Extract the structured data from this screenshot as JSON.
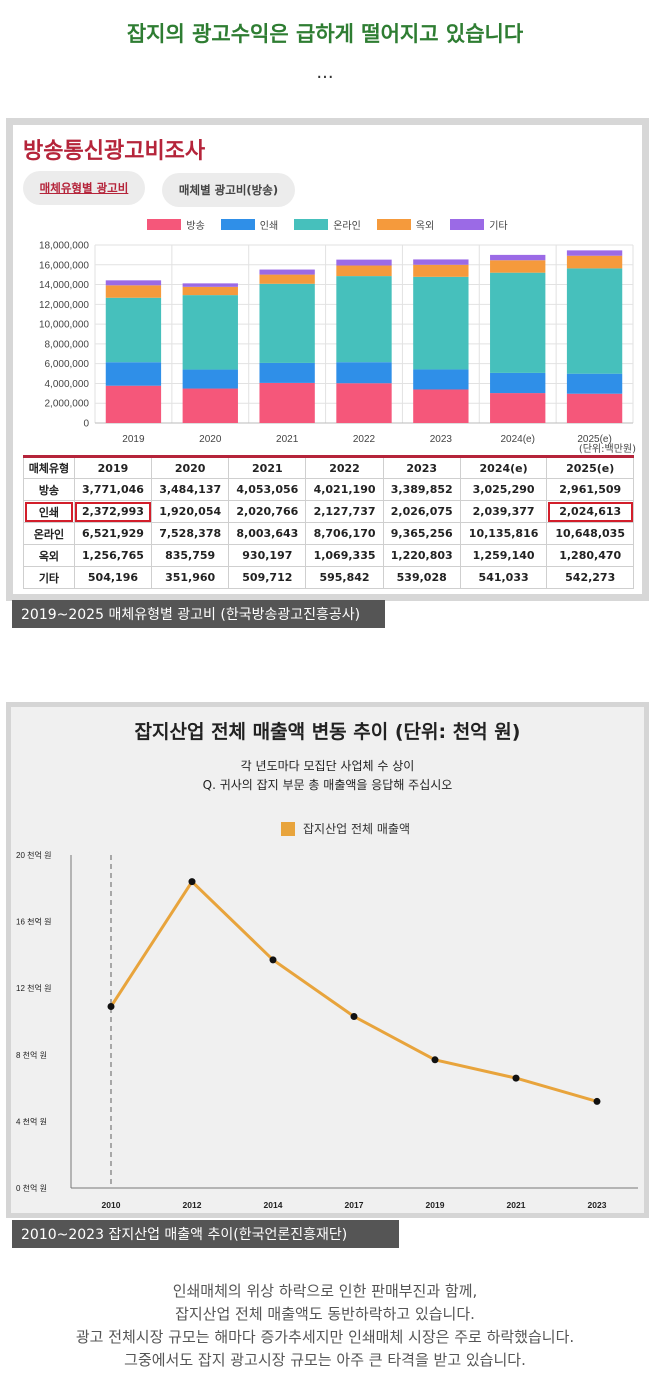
{
  "header": {
    "headline": "잡지의 광고수익은 급하게 떨어지고 있습니다",
    "ellipsis": "..."
  },
  "figure1": {
    "title": "방송통신광고비조사",
    "tabs": [
      {
        "label": "매체유형별 광고비",
        "active": true
      },
      {
        "label": "매체별 광고비(방송)",
        "active": false
      }
    ],
    "unit": "(단위:백만원)",
    "caption": "2019~2025 매체유형별 광고비 (한국방송광고진흥공사)",
    "table": {
      "header": [
        "매체유형",
        "2019",
        "2020",
        "2021",
        "2022",
        "2023",
        "2024(e)",
        "2025(e)"
      ],
      "rows": [
        [
          "방송",
          "3,771,046",
          "3,484,137",
          "4,053,056",
          "4,021,190",
          "3,389,852",
          "3,025,290",
          "2,961,509"
        ],
        [
          "인쇄",
          "2,372,993",
          "1,920,054",
          "2,020,766",
          "2,127,737",
          "2,026,075",
          "2,039,377",
          "2,024,613"
        ],
        [
          "온라인",
          "6,521,929",
          "7,528,378",
          "8,003,643",
          "8,706,170",
          "9,365,256",
          "10,135,816",
          "10,648,035"
        ],
        [
          "옥외",
          "1,256,765",
          "835,759",
          "930,197",
          "1,069,335",
          "1,220,803",
          "1,259,140",
          "1,280,470"
        ],
        [
          "기타",
          "504,196",
          "351,960",
          "509,712",
          "595,842",
          "539,028",
          "541,033",
          "542,273"
        ]
      ]
    }
  },
  "figure2": {
    "title": "잡지산업 전체 매출액 변동 추이 (단위: 천억 원)",
    "subtitle1": "각 년도마다 모집단 사업체 수 상이",
    "subtitle2": "Q. 귀사의 잡지 부문 총 매출액을 응답해 주십시오",
    "legend": "잡지산업 전체 매출액",
    "caption": "2010~2023 잡지산업 매출액 추이(한국언론진흥재단)"
  },
  "body_text": [
    "인쇄매체의 위상 하락으로 인한 판매부진과 함께,",
    "잡지산업 전체 매출액도 동반하락하고 있습니다.",
    "광고 전체시장 규모는 해마다 증가추세지만 인쇄매체 시장은 주로 하락했습니다.",
    "그중에서도 잡지 광고시장 규모는 아주 큰 타격을 받고 있습니다."
  ],
  "chart_data": [
    {
      "type": "bar",
      "stacked": true,
      "title": "방송통신광고비조사",
      "categories": [
        "2019",
        "2020",
        "2021",
        "2022",
        "2023",
        "2024(e)",
        "2025(e)"
      ],
      "series": [
        {
          "name": "방송",
          "color": "#f5577a",
          "values": [
            3771046,
            3484137,
            4053056,
            4021190,
            3389852,
            3025290,
            2961509
          ]
        },
        {
          "name": "인쇄",
          "color": "#2f8fe8",
          "values": [
            2372993,
            1920054,
            2020766,
            2127737,
            2026075,
            2039377,
            2024613
          ]
        },
        {
          "name": "온라인",
          "color": "#46c0bc",
          "values": [
            6521929,
            7528378,
            8003643,
            8706170,
            9365256,
            10135816,
            10648035
          ]
        },
        {
          "name": "옥외",
          "color": "#f59a3c",
          "values": [
            1256765,
            835759,
            930197,
            1069335,
            1220803,
            1259140,
            1280470
          ]
        },
        {
          "name": "기타",
          "color": "#9b6ae6",
          "values": [
            504196,
            351960,
            509712,
            595842,
            539028,
            541033,
            542273
          ]
        }
      ],
      "ylim": [
        0,
        18000000
      ],
      "yticks": [
        "18,000,000",
        "16,000,000",
        "14,000,000",
        "12,000,000",
        "10,000,000",
        "8,000,000",
        "6,000,000",
        "4,000,000",
        "2,000,000",
        "0"
      ],
      "legend_position": "top-center"
    },
    {
      "type": "line",
      "title": "잡지산업 전체 매출액 변동 추이 (단위: 천억 원)",
      "x": [
        "2010",
        "2012",
        "2014",
        "2017",
        "2019",
        "2021",
        "2023"
      ],
      "series": [
        {
          "name": "잡지산업 전체 매출액",
          "color": "#e8a43c",
          "values": [
            10.9,
            18.4,
            13.7,
            10.3,
            7.7,
            6.6,
            5.2
          ]
        }
      ],
      "ylim": [
        0,
        20
      ],
      "yticks": [
        "20 천억 원",
        "16 천억 원",
        "12 천억 원",
        "8 천억 원",
        "4 천억 원",
        "0 천억 원"
      ],
      "legend_position": "top-center"
    }
  ]
}
